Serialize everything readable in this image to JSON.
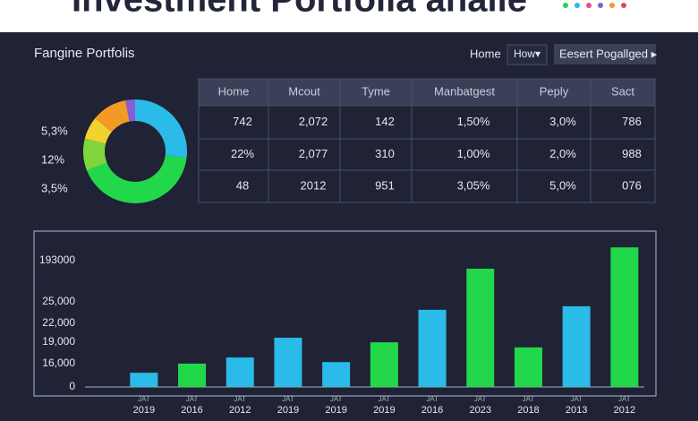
{
  "header": {
    "title": "Investment Portfolia analie"
  },
  "nav": {
    "brand": "Fangine Portfolis",
    "home": "Home",
    "dropdown": "How▾",
    "button": "Eesert Pogallged ▸"
  },
  "table": {
    "headers": [
      "Home",
      "Mcout",
      "Tyme",
      "Manbatgest",
      "Peply",
      "Sact"
    ],
    "rows": [
      [
        "742",
        "2,072",
        "142",
        "1,50%",
        "3,0%",
        "786"
      ],
      [
        "22%",
        "2,077",
        "310",
        "1,00%",
        "2,0%",
        "988"
      ],
      [
        "48",
        "2012",
        "951",
        "3,05%",
        "5,0%",
        "076"
      ]
    ]
  },
  "chart_data": [
    {
      "type": "pie",
      "donut": true,
      "side_labels": [
        "5,3%",
        "12%",
        "3,5%"
      ],
      "values": [
        27,
        42,
        10,
        7,
        11,
        3
      ],
      "colors": [
        "#2bbbe8",
        "#22d84a",
        "#7fd53a",
        "#f2d230",
        "#f39a26",
        "#8a5cd8"
      ]
    },
    {
      "type": "bar",
      "categories": [
        "2019",
        "2016",
        "2012",
        "2019",
        "2019",
        "2019",
        "2016",
        "2023",
        "2018",
        "2013",
        "2012"
      ],
      "month_labels": [
        "JAT",
        "JAT",
        "JAT",
        "JAT",
        "JAT",
        "JAT",
        "JAT",
        "JAT",
        "JAT",
        "JAT",
        "JAT"
      ],
      "values": [
        2800,
        4600,
        5800,
        9700,
        4900,
        8800,
        15200,
        23300,
        7800,
        15900,
        27500
      ],
      "colors": [
        "#2bbbe8",
        "#22d84a",
        "#2bbbe8",
        "#2bbbe8",
        "#2bbbe8",
        "#22d84a",
        "#2bbbe8",
        "#22d84a",
        "#22d84a",
        "#2bbbe8",
        "#22d84a"
      ],
      "ylim": [
        0,
        30000
      ],
      "y_axis_labels": [
        "0",
        "16,000",
        "19,000",
        "22,000",
        "25,000",
        "193000"
      ]
    }
  ]
}
